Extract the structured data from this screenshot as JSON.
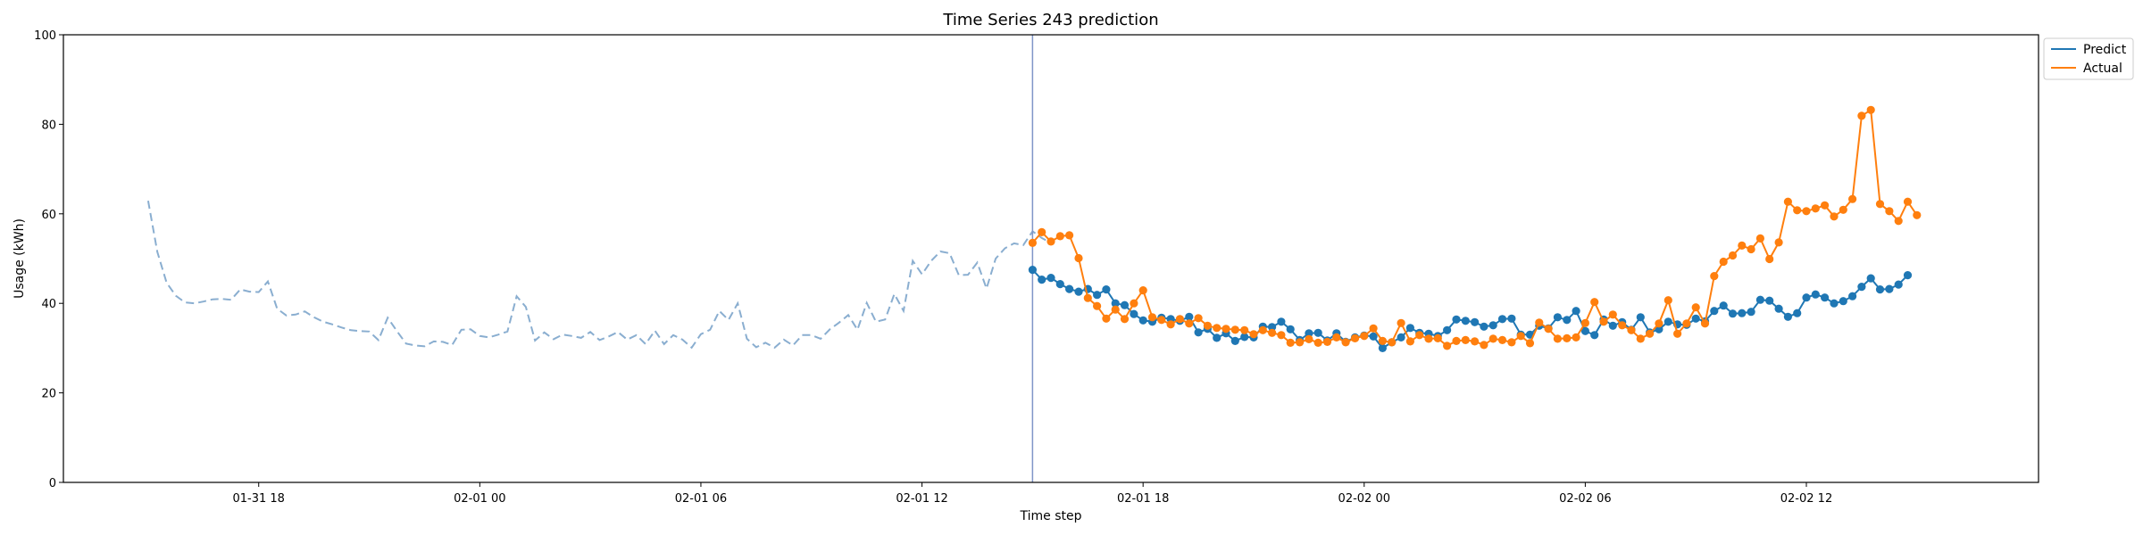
{
  "chart_data": {
    "type": "line",
    "title": "Time Series 243 prediction",
    "xlabel": "Time step",
    "ylabel": "Usage (kWh)",
    "xlim": [
      "2024-01-31 12:42",
      "2024-02-02 18:18"
    ],
    "ylim": [
      0,
      100
    ],
    "x_ticks": [
      "01-31 18",
      "02-01 00",
      "02-01 06",
      "02-01 12",
      "02-01 18",
      "02-02 00",
      "02-02 06",
      "02-02 12"
    ],
    "x_tick_times": [
      "2024-01-31 18:00",
      "2024-02-01 00:00",
      "2024-02-01 06:00",
      "2024-02-01 12:00",
      "2024-02-01 18:00",
      "2024-02-02 00:00",
      "2024-02-02 06:00",
      "2024-02-02 12:00"
    ],
    "y_ticks": [
      0,
      20,
      40,
      60,
      80,
      100
    ],
    "grid": false,
    "legend_position": "outside top-right",
    "vline_time": "2024-02-01 15:00",
    "history": {
      "color": "#8aaed0",
      "style": "dashed",
      "start": "2024-01-31 15:00",
      "step_minutes": 15,
      "values": [
        62.9,
        51.5,
        44.6,
        41.7,
        40.2,
        40.0,
        40.4,
        40.9,
        41.0,
        40.8,
        43.1,
        42.6,
        42.5,
        44.9,
        38.8,
        37.3,
        37.5,
        38.2,
        36.9,
        35.9,
        35.3,
        34.6,
        34.0,
        33.8,
        33.7,
        31.8,
        36.8,
        33.8,
        31.0,
        30.6,
        30.4,
        31.5,
        31.4,
        30.7,
        34.1,
        34.2,
        32.7,
        32.4,
        33.0,
        33.7,
        41.6,
        39.2,
        31.7,
        33.5,
        32.0,
        33.0,
        32.7,
        32.3,
        33.6,
        31.8,
        32.6,
        33.6,
        31.9,
        32.9,
        30.9,
        33.9,
        30.9,
        32.9,
        31.9,
        30.1,
        33.1,
        34.1,
        38.3,
        36.3,
        40.0,
        32.1,
        30.2,
        31.2,
        30.1,
        31.9,
        30.6,
        32.9,
        32.9,
        32.1,
        34.2,
        35.7,
        37.4,
        34.1,
        40.1,
        35.9,
        36.4,
        42.1,
        38.3,
        49.5,
        46.5,
        49.5,
        51.6,
        51.2,
        46.3,
        46.4,
        49.1,
        43.3,
        50.0,
        52.3,
        53.4,
        53.0,
        56.1,
        54.6,
        53.5
      ]
    },
    "series": [
      {
        "name": "Predict",
        "color": "#1f77b4",
        "start": "2024-02-01 15:00",
        "step_minutes": 15,
        "values": [
          47.5,
          45.3,
          45.7,
          44.3,
          43.2,
          42.6,
          43.2,
          41.9,
          43.1,
          40.0,
          39.6,
          37.6,
          36.2,
          35.9,
          36.8,
          36.5,
          36.1,
          37.0,
          33.5,
          34.3,
          32.3,
          33.3,
          31.6,
          32.5,
          32.4,
          34.8,
          34.7,
          35.9,
          34.2,
          31.8,
          33.3,
          33.4,
          31.7,
          33.3,
          31.4,
          32.4,
          32.8,
          32.6,
          30.0,
          31.3,
          32.4,
          34.5,
          33.4,
          33.2,
          32.7,
          34.0,
          36.4,
          36.1,
          35.8,
          34.8,
          35.1,
          36.5,
          36.6,
          33.0,
          33.0,
          35.0,
          34.4,
          36.9,
          36.3,
          38.3,
          33.8,
          32.9,
          36.4,
          35.0,
          35.8,
          34.1,
          36.9,
          33.5,
          34.2,
          35.9,
          35.3,
          35.2,
          36.6,
          36.0,
          38.3,
          39.5,
          37.7,
          37.8,
          38.1,
          40.8,
          40.6,
          38.8,
          37.0,
          37.8,
          41.3,
          42.0,
          41.3,
          40.0,
          40.5,
          41.6,
          43.7,
          45.6,
          43.1,
          43.2,
          44.2,
          46.3
        ]
      },
      {
        "name": "Actual",
        "color": "#ff7f0e",
        "start": "2024-02-01 15:00",
        "step_minutes": 15,
        "values": [
          53.5,
          55.9,
          53.8,
          55.0,
          55.2,
          50.1,
          41.2,
          39.4,
          36.6,
          38.6,
          36.5,
          40.0,
          42.9,
          36.9,
          36.3,
          35.3,
          36.5,
          35.5,
          36.7,
          35.0,
          34.5,
          34.3,
          34.1,
          34.0,
          33.1,
          34.0,
          33.4,
          32.9,
          31.2,
          31.3,
          32.0,
          31.2,
          31.4,
          32.4,
          31.3,
          32.2,
          32.7,
          34.4,
          31.6,
          31.3,
          35.6,
          31.5,
          32.9,
          32.1,
          32.2,
          30.5,
          31.6,
          31.8,
          31.5,
          30.7,
          32.1,
          31.8,
          31.3,
          32.7,
          31.1,
          35.7,
          34.3,
          32.1,
          32.2,
          32.4,
          35.6,
          40.3,
          35.9,
          37.5,
          35.1,
          34.0,
          32.1,
          33.2,
          35.5,
          40.7,
          33.2,
          35.5,
          39.1,
          35.5,
          46.1,
          49.3,
          50.7,
          52.9,
          52.1,
          54.5,
          49.9,
          53.6,
          62.7,
          60.8,
          60.6,
          61.2,
          61.9,
          59.4,
          60.9,
          63.3,
          81.9,
          83.2,
          62.2,
          60.6,
          58.4,
          62.7,
          59.7
        ]
      }
    ]
  }
}
